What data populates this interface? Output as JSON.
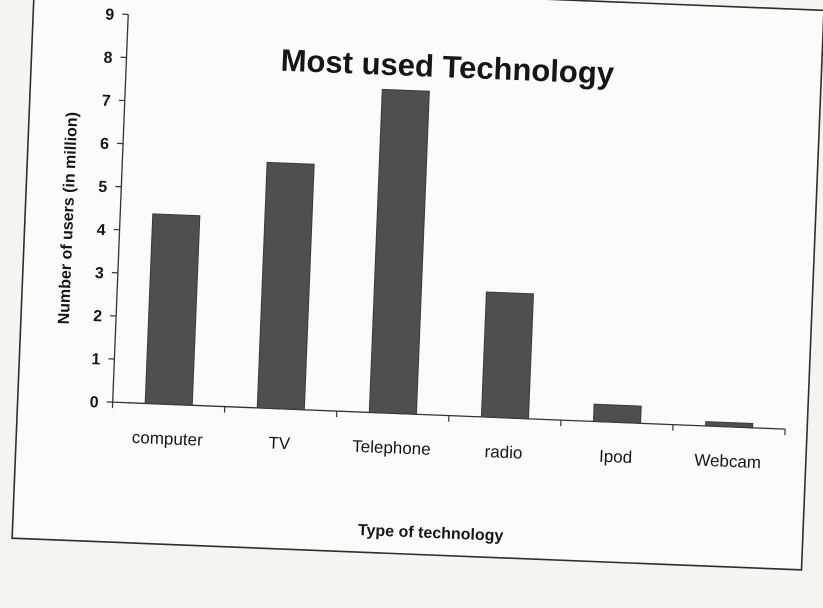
{
  "chart_data": {
    "type": "bar",
    "title": "Most used Technology",
    "xlabel": "Type of technology",
    "ylabel": "Number of users (in million)",
    "categories": [
      "computer",
      "TV",
      "Telephone",
      "radio",
      "Ipod",
      "Webcam"
    ],
    "values": [
      4.4,
      5.7,
      7.5,
      2.9,
      0.4,
      0.1
    ],
    "ylim": [
      0,
      9
    ],
    "yticks": [
      0,
      1,
      2,
      3,
      4,
      5,
      6,
      7,
      8,
      9
    ],
    "grid": false,
    "legend": "none",
    "bar_color": "#4f4f4f"
  }
}
